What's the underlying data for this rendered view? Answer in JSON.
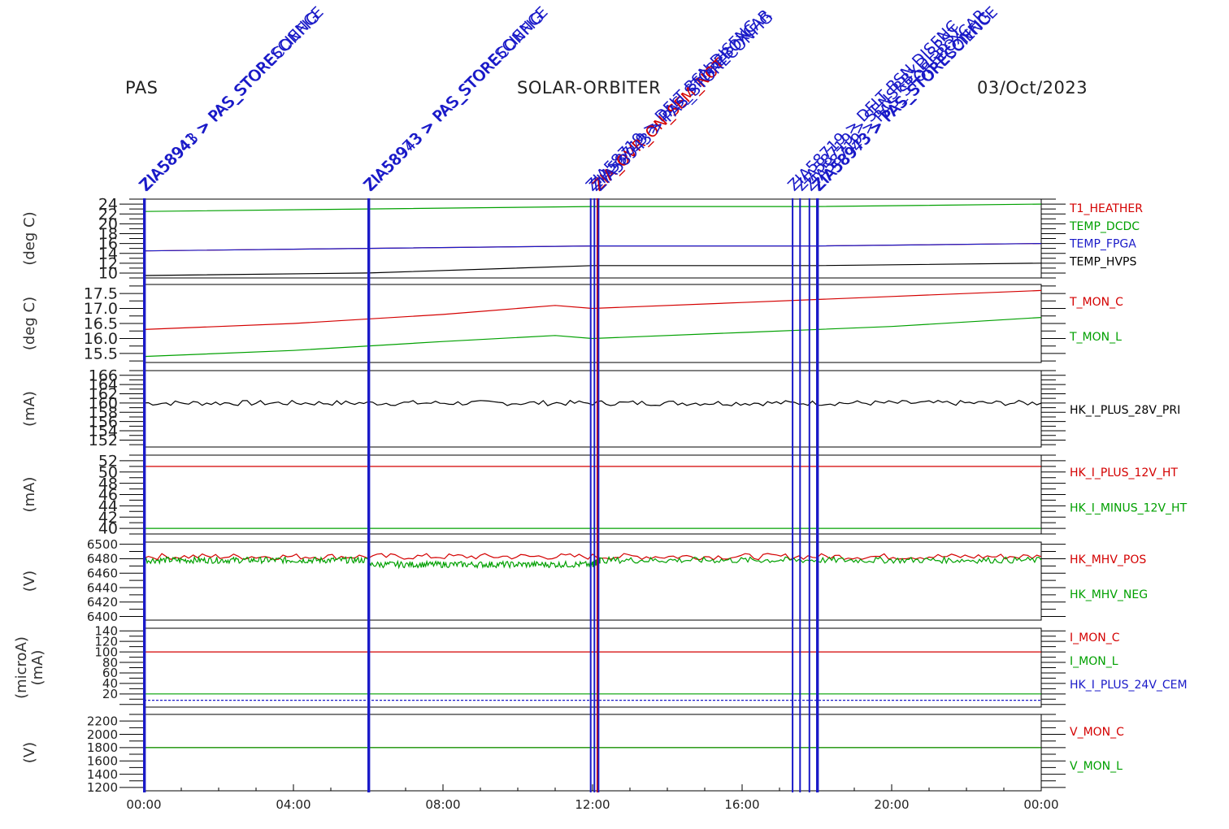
{
  "header": {
    "instrument": "PAS",
    "mission": "SOLAR-ORBITER",
    "date": "03/Oct/2023"
  },
  "colors": {
    "red": "#d40000",
    "green": "#00a000",
    "blue": "#1a1ac8",
    "black": "#000000"
  },
  "chart_data": {
    "type": "line",
    "x_axis": {
      "range_hours": [
        0,
        24
      ],
      "tick_labels": [
        "00:00",
        "04:00",
        "08:00",
        "12:00",
        "16:00",
        "20:00",
        "00:00"
      ],
      "tick_hours": [
        0,
        4,
        8,
        12,
        16,
        20,
        24
      ]
    },
    "event_markers": [
      {
        "hour": 0.0,
        "color": "#1a1ac8",
        "label": "ZIA58941 > PAS_STORESCIENCE"
      },
      {
        "hour": 0.03,
        "color": "#1a1ac8",
        "label": "ZIA58943 > PAS_STORECONFIG"
      },
      {
        "hour": 6.0,
        "color": "#1a1ac8",
        "label": "ZIA58973 > PAS_STORESCIENCE"
      },
      {
        "hour": 6.03,
        "color": "#1a1ac8",
        "label": "ZIA58943 > PAS_STORECONFIG"
      },
      {
        "hour": 11.95,
        "color": "#1a1ac8",
        "label": "ZIA58719 > DFLT BSN DISFNC"
      },
      {
        "hour": 12.05,
        "color": "#1a1ac8",
        "label": "ZIA58719 > PAS_STOREBOXCAR"
      },
      {
        "hour": 12.13,
        "color": "#d40000",
        "label": "ZIA_OVR_ON_SEM_NOT"
      },
      {
        "hour": 12.16,
        "color": "#1a1ac8",
        "label": "ZIA58943 > PAS_STORECONFIG"
      },
      {
        "hour": 17.35,
        "color": "#1a1ac8",
        "label": "ZIA58719 > DFLT BSN DISFNC"
      },
      {
        "hour": 17.55,
        "color": "#1a1ac8",
        "label": "ZIA58719 > SENSRBXDISRST"
      },
      {
        "hour": 17.8,
        "color": "#1a1ac8",
        "label": "ZIA58719 > PAS_STOREBOXCAR"
      },
      {
        "hour": 18.0,
        "color": "#1a1ac8",
        "label": "ZIA58943 > PAS_STORECONFIG"
      },
      {
        "hour": 18.03,
        "color": "#1a1ac8",
        "label": "ZIA58973 > PAS_STORESCIENCE"
      }
    ],
    "panels": [
      {
        "ylabel": [
          "(deg C)"
        ],
        "ylim": [
          9,
          25
        ],
        "ticks": [
          10,
          12,
          14,
          16,
          18,
          20,
          22,
          24
        ],
        "series": [
          {
            "name": "T1_HEATHER",
            "color": "#d40000",
            "x": [
              0,
              6,
              12,
              18,
              24
            ],
            "y": [
              14.5,
              15,
              15.5,
              15.5,
              16
            ]
          },
          {
            "name": "TEMP_DCDC",
            "color": "#00a000",
            "x": [
              0,
              6,
              12,
              18,
              24
            ],
            "y": [
              22.5,
              23,
              23.5,
              23.5,
              24
            ]
          },
          {
            "name": "TEMP_FPGA",
            "color": "#1a1ac8",
            "x": [
              0,
              6,
              12,
              18,
              24
            ],
            "y": [
              14.5,
              15,
              15.5,
              15.5,
              16
            ]
          },
          {
            "name": "TEMP_HVPS",
            "color": "#000000",
            "x": [
              0,
              6,
              12,
              18,
              24
            ],
            "y": [
              9.5,
              10,
              11.5,
              11.5,
              12
            ]
          }
        ]
      },
      {
        "ylabel": [
          "(deg C)"
        ],
        "ylim": [
          15.2,
          17.8
        ],
        "ticks": [
          15.5,
          16.0,
          16.5,
          17.0,
          17.5
        ],
        "tick_labels": [
          "15.5",
          "16.0",
          "16.5",
          "17.0",
          "17.5"
        ],
        "series": [
          {
            "name": "T_MON_C",
            "color": "#d40000",
            "x": [
              0,
              4,
              8,
              11,
              12,
              16,
              20,
              24
            ],
            "y": [
              16.3,
              16.5,
              16.8,
              17.1,
              17.0,
              17.2,
              17.4,
              17.6
            ]
          },
          {
            "name": "T_MON_L",
            "color": "#00a000",
            "x": [
              0,
              4,
              8,
              11,
              12,
              16,
              20,
              24
            ],
            "y": [
              15.4,
              15.6,
              15.9,
              16.1,
              16.0,
              16.2,
              16.4,
              16.7
            ]
          }
        ]
      },
      {
        "ylabel": [
          "(mA)"
        ],
        "ylim": [
          150.5,
          167
        ],
        "ticks": [
          152,
          154,
          156,
          158,
          160,
          162,
          164,
          166
        ],
        "series": [
          {
            "name": "HK_I_PLUS_28V_PRI",
            "color": "#000000",
            "x": [
              0,
              24
            ],
            "y": [
              160,
              160
            ],
            "noise": 0.7
          }
        ]
      },
      {
        "ylabel": [
          "(mA)"
        ],
        "ylim": [
          39,
          53
        ],
        "ticks": [
          40,
          42,
          44,
          46,
          48,
          50,
          52
        ],
        "series": [
          {
            "name": "HK_I_PLUS_12V_HT",
            "color": "#d40000",
            "x": [
              0,
              24
            ],
            "y": [
              51,
              51
            ]
          },
          {
            "name": "HK_I_MINUS_12V_HT",
            "color": "#00a000",
            "x": [
              0,
              24
            ],
            "y": [
              40,
              40
            ]
          }
        ]
      },
      {
        "ylabel": [
          "(V)"
        ],
        "ylim": [
          6395,
          6503
        ],
        "ticks": [
          6400,
          6420,
          6440,
          6460,
          6480,
          6500
        ],
        "series": [
          {
            "name": "HK_MHV_POS",
            "color": "#d40000",
            "x": [
              0,
              24
            ],
            "y": [
              6483,
              6483
            ],
            "noise": 0.8
          },
          {
            "name": "HK_MHV_NEG",
            "color": "#00a000",
            "x": [
              0,
              6,
              6.01,
              12,
              12.2,
              24
            ],
            "y": [
              6478,
              6478,
              6472,
              6472,
              6478,
              6478
            ],
            "noise": 0.8
          }
        ]
      },
      {
        "ylabel": [
          "(microA)",
          "(mA)"
        ],
        "ylim": [
          -5,
          145
        ],
        "ticks": [
          20,
          40,
          60,
          80,
          100,
          120,
          140
        ],
        "series": [
          {
            "name": "I_MON_C",
            "color": "#d40000",
            "x": [
              0,
              24
            ],
            "y": [
              100,
              100
            ]
          },
          {
            "name": "I_MON_L",
            "color": "#00a000",
            "x": [
              0,
              24
            ],
            "y": [
              20,
              20
            ]
          },
          {
            "name": "HK_I_PLUS_24V_CEM",
            "color": "#1a1ac8",
            "x": [
              0,
              24
            ],
            "y": [
              8,
              8
            ],
            "dashed": true
          }
        ]
      },
      {
        "ylabel": [
          "(V)"
        ],
        "ylim": [
          1150,
          2300
        ],
        "ticks": [
          1200,
          1400,
          1600,
          1800,
          2000,
          2200
        ],
        "series": [
          {
            "name": "V_MON_C",
            "color": "#d40000",
            "x": [
              0,
              24
            ],
            "y": [
              1800,
              1800
            ]
          },
          {
            "name": "V_MON_L",
            "color": "#00a000",
            "x": [
              0,
              24
            ],
            "y": [
              1800,
              1800
            ]
          }
        ]
      }
    ]
  }
}
